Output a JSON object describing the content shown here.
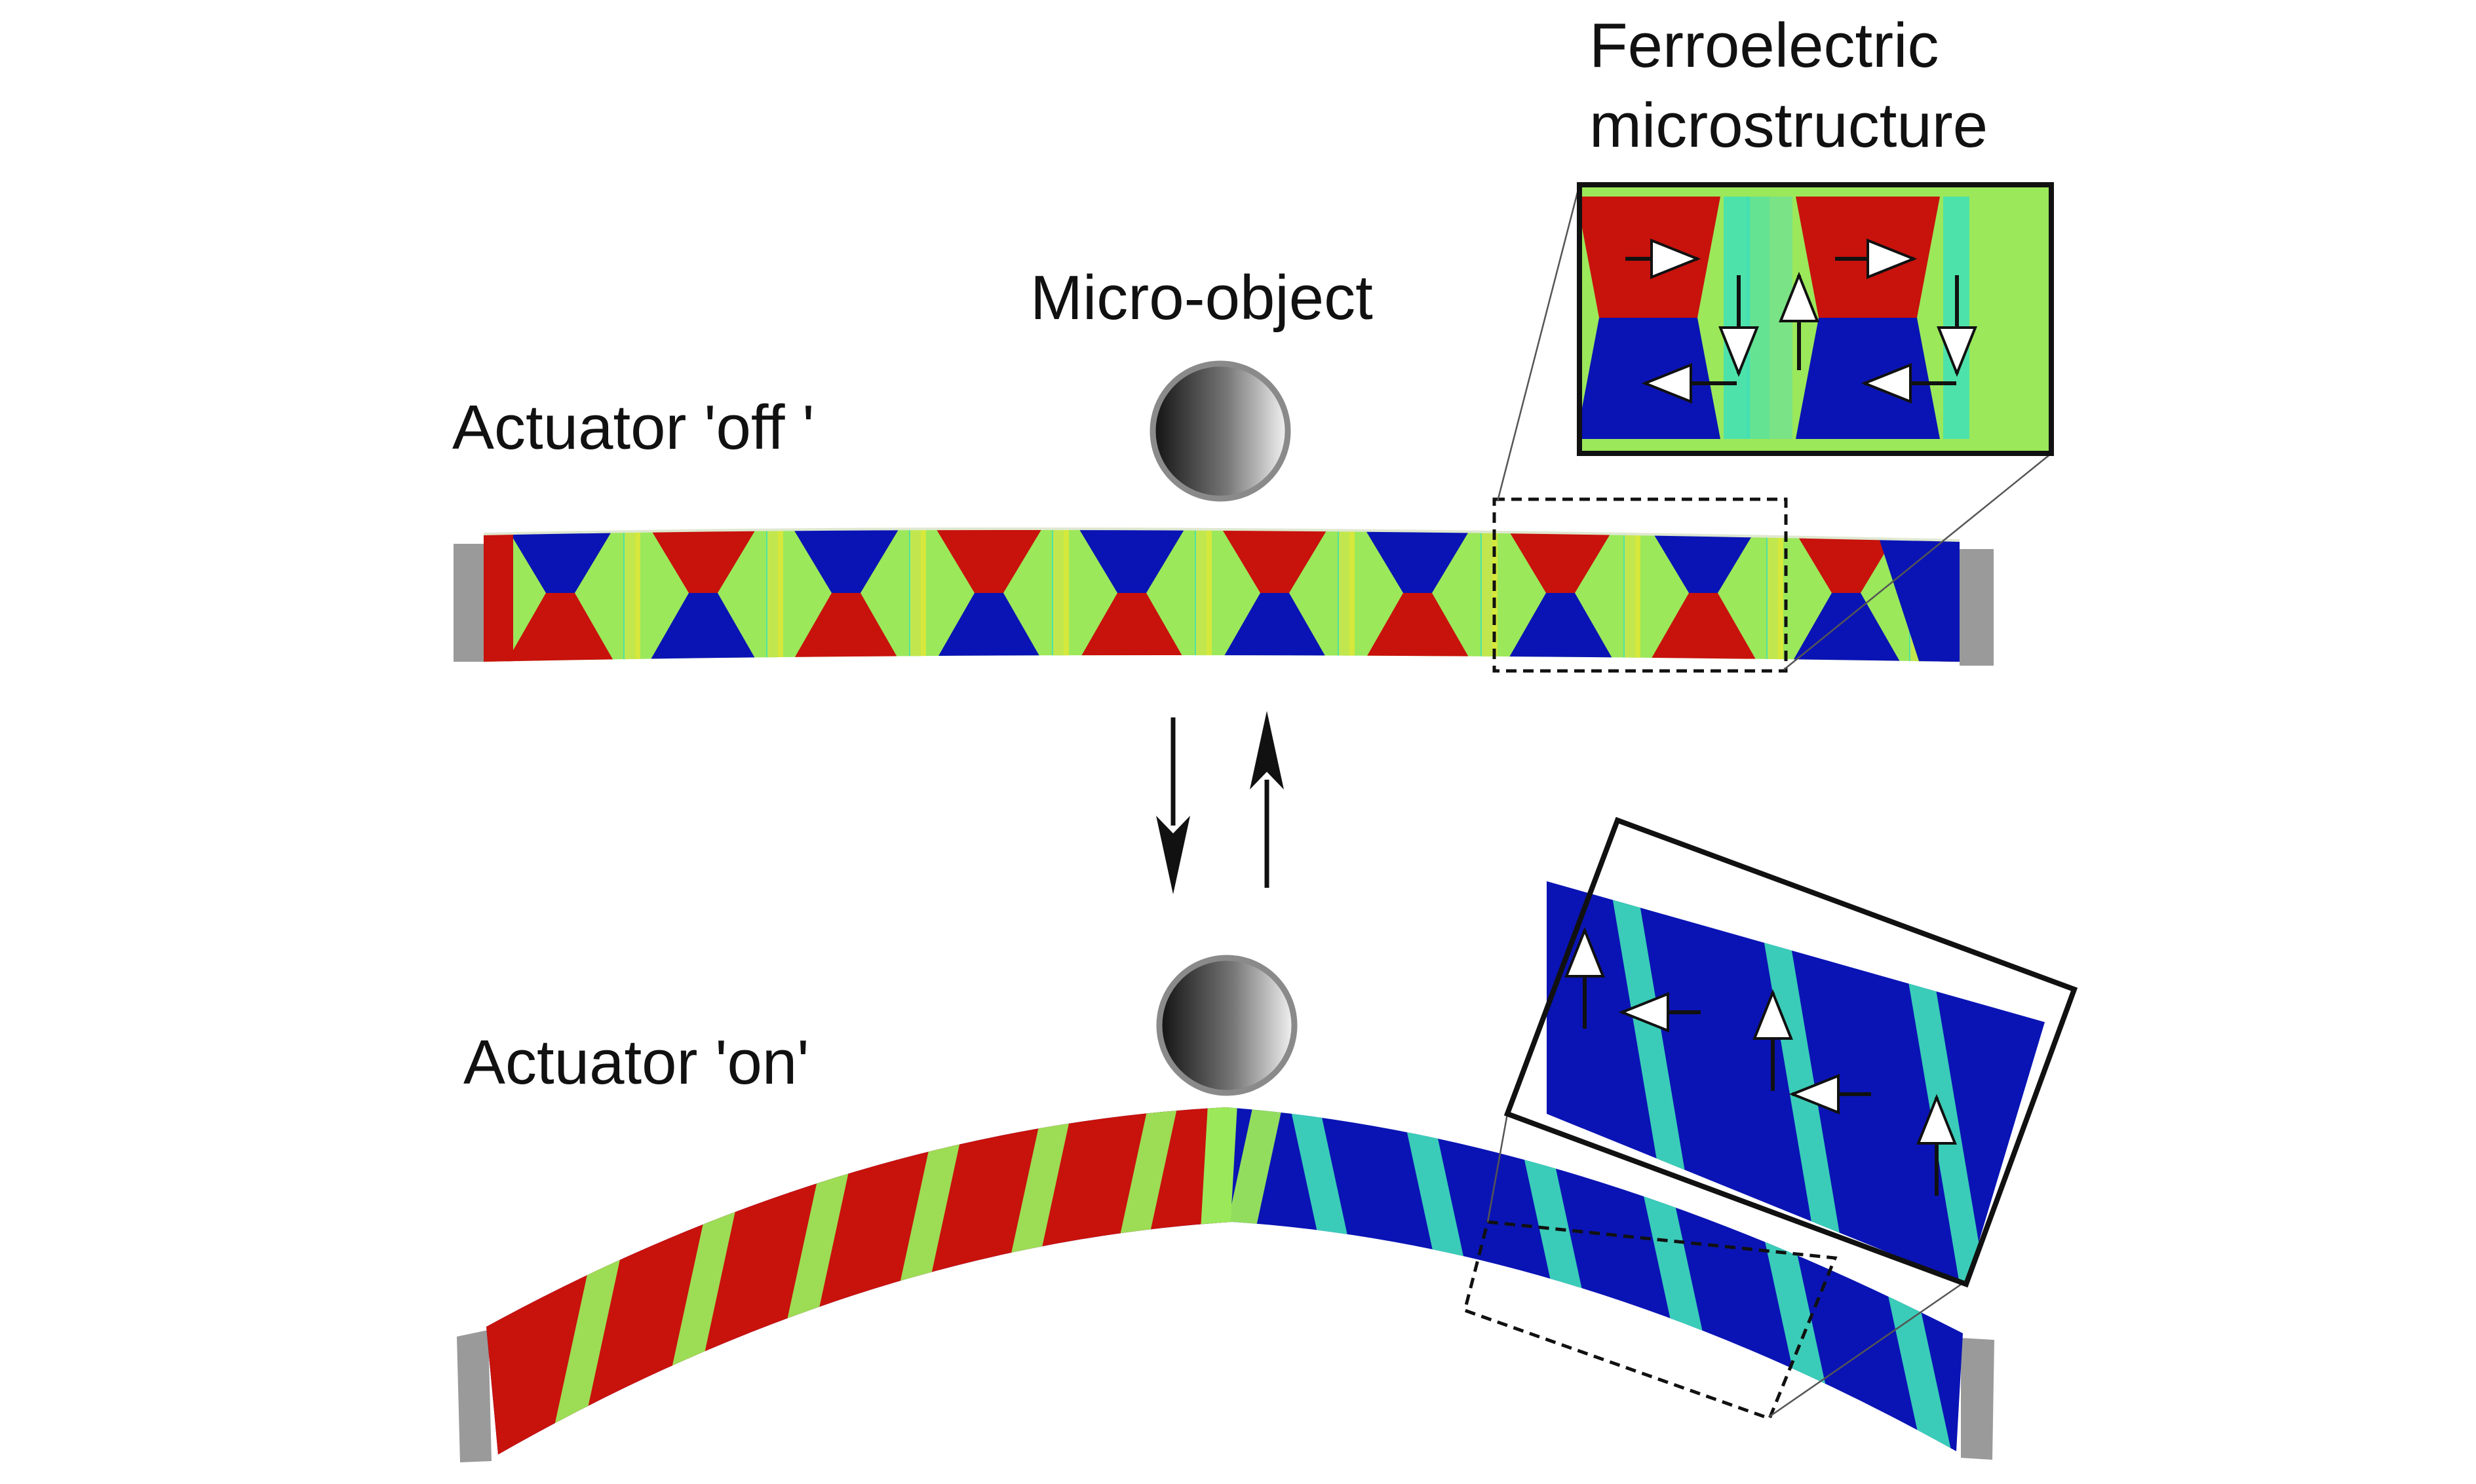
{
  "labels": {
    "inset_title_line1": "Ferroelectric",
    "inset_title_line2": "microstructure",
    "micro_object": "Micro-object",
    "actuator_off": "Actuator 'off '",
    "actuator_on": "Actuator 'on'"
  },
  "colors": {
    "domain_red": "#c8120c",
    "domain_blue": "#0a14b4",
    "domain_cyan": "#3fe0b8",
    "domain_yellow": "#e8e832",
    "domain_green": "#9be85a",
    "clamp_gray": "#9a9a9a",
    "frame": "#111111"
  },
  "icons": {
    "switch_down": "arrow-down-icon",
    "switch_up": "arrow-up-icon",
    "polarization": "polarization-arrow-icon"
  }
}
